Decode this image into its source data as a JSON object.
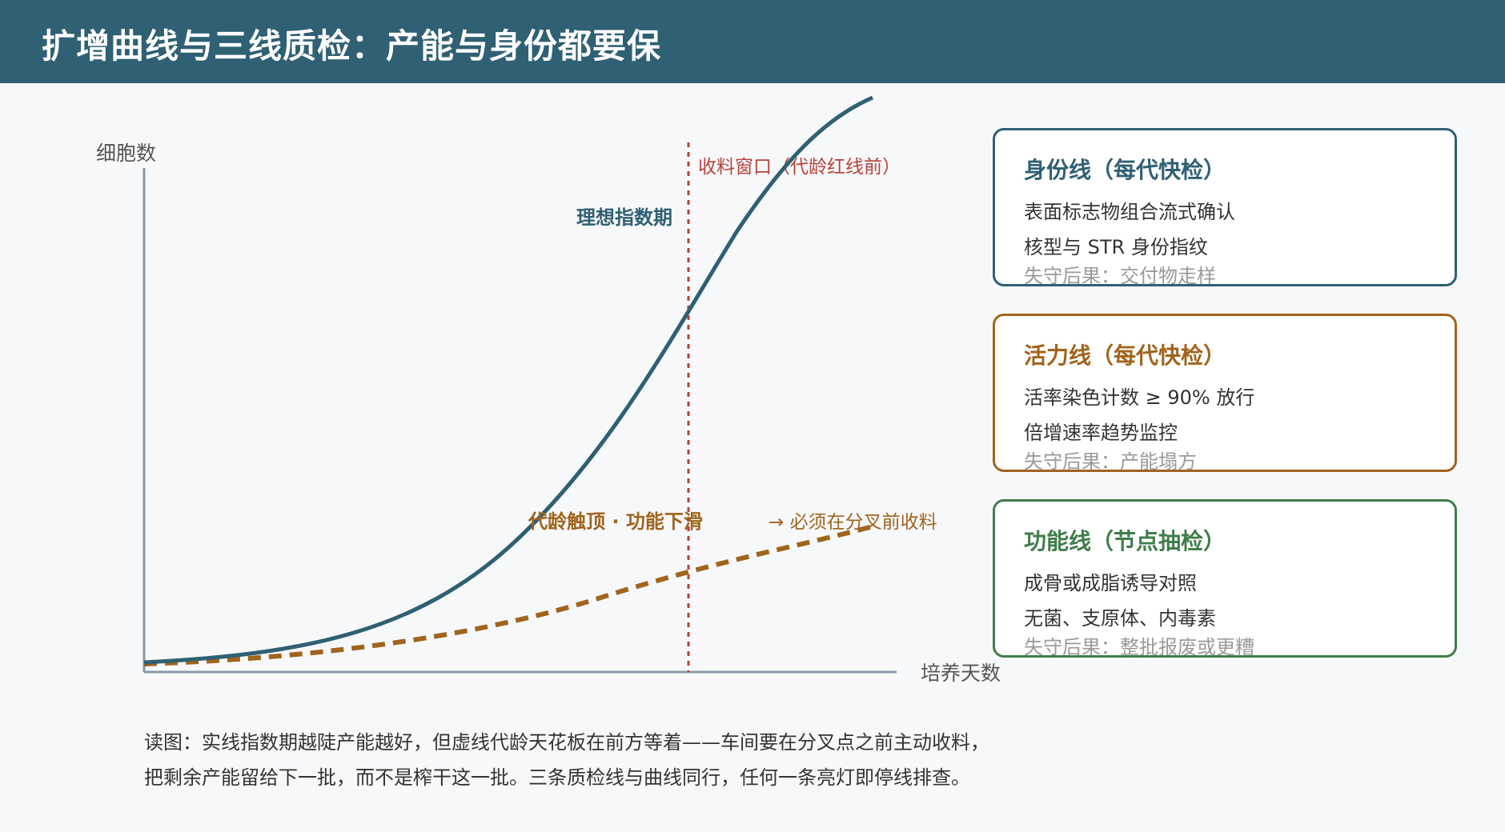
{
  "header": {
    "title": "扩增曲线与三线质检：产能与身份都要保"
  },
  "diagram": {
    "y_label": "细胞数",
    "x_label": "培养天数",
    "window_label": "收料窗口（代龄红线前）",
    "exp_label": "理想指数期",
    "ceiling_label": "代龄触顶 · 功能下滑",
    "fork_label": "→ 必须在分叉前收料",
    "colors": {
      "axis": "#8a9aa8",
      "solid_curve": "#2f6073",
      "dashed_curve": "#a0641c",
      "red_line": "#b5433a"
    }
  },
  "cards": [
    {
      "title": "身份线（每代快检）",
      "line1": "表面标志物组合流式确认",
      "line2": "核型与 STR 身份指纹",
      "line3": "失守后果：交付物走样",
      "color": "#2f6073"
    },
    {
      "title": "活力线（每代快检）",
      "line1": "活率染色计数 ≥ 90% 放行",
      "line2": "倍增速率趋势监控",
      "line3": "失守后果：产能塌方",
      "color": "#a0641c"
    },
    {
      "title": "功能线（节点抽检）",
      "line1": "成骨或成脂诱导对照",
      "line2": "无菌、支原体、内毒素",
      "line3": "失守后果：整批报废或更糟",
      "color": "#3f7d4a"
    }
  ],
  "reading": {
    "line1": "读图：实线指数期越陡产能越好，但虚线代龄天花板在前方等着——车间要在分叉点之前主动收料，",
    "line2": "把剩余产能留给下一批，而不是榨干这一批。三条质检线与曲线同行，任何一条亮灯即停线排查。"
  }
}
